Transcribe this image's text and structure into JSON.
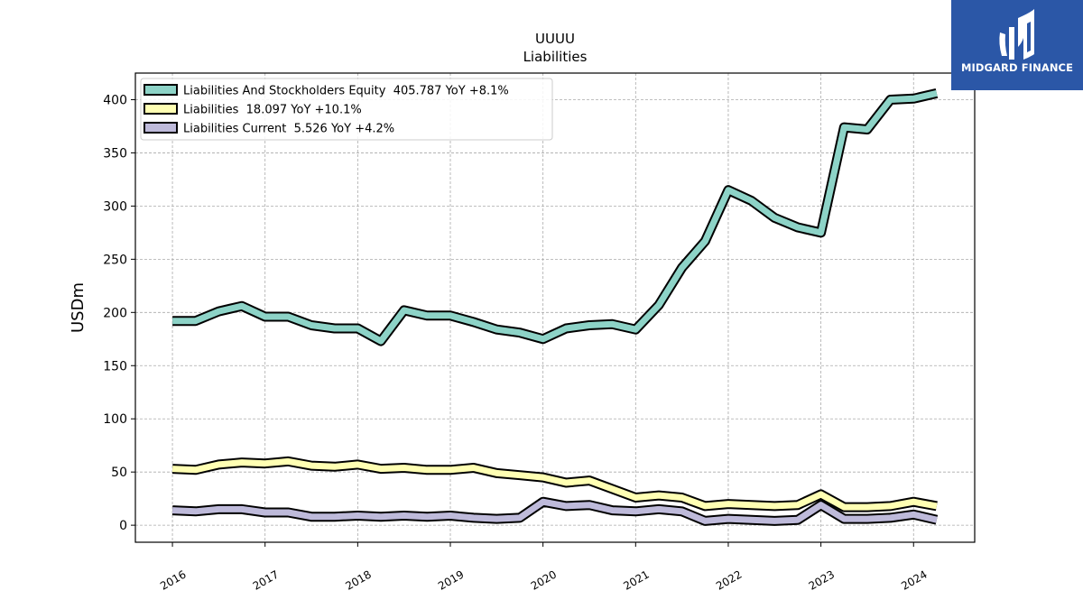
{
  "chart_data": {
    "type": "line",
    "title": "UUUU",
    "subtitle": "Liabilities",
    "ylabel": "USDm",
    "xlabel": "",
    "xlim": [
      2015.6,
      2024.66
    ],
    "ylim": [
      -16,
      425
    ],
    "xticks": [
      2016,
      2017,
      2018,
      2019,
      2020,
      2021,
      2022,
      2023,
      2024
    ],
    "yticks": [
      0,
      50,
      100,
      150,
      200,
      250,
      300,
      350,
      400
    ],
    "grid": true,
    "legend_position": "top-left",
    "x": [
      2016.0,
      2016.25,
      2016.5,
      2016.75,
      2017.0,
      2017.25,
      2017.5,
      2017.75,
      2018.0,
      2018.25,
      2018.5,
      2018.75,
      2019.0,
      2019.25,
      2019.5,
      2019.75,
      2020.0,
      2020.25,
      2020.5,
      2020.75,
      2021.0,
      2021.25,
      2021.5,
      2021.75,
      2022.0,
      2022.25,
      2022.5,
      2022.75,
      2023.0,
      2023.25,
      2023.5,
      2023.75,
      2024.0,
      2024.25
    ],
    "series": [
      {
        "name": "Liabilities And Stockholders Equity  405.787 YoY +8.1%",
        "color": "#8dd3c7",
        "values": [
          192,
          192,
          201,
          206,
          196,
          196,
          188,
          185,
          185,
          173,
          202,
          197,
          197,
          191,
          184,
          181,
          175,
          185,
          188,
          189,
          184,
          207,
          242,
          267,
          315,
          305,
          289,
          280,
          275,
          374,
          372,
          400,
          401,
          406
        ]
      },
      {
        "name": "Liabilities  18.097 YoY +10.1%",
        "color": "#ffffb3",
        "values": [
          53,
          52,
          57,
          59,
          58,
          60,
          56,
          55,
          57,
          53,
          54,
          52,
          52,
          54,
          49,
          47,
          45,
          40,
          42,
          34,
          26,
          28,
          26,
          18,
          20,
          19,
          18,
          19,
          29,
          17,
          17,
          18,
          22,
          18
        ]
      },
      {
        "name": "Liabilities Current  5.526 YoY +4.2%",
        "color": "#bebada",
        "values": [
          14,
          13,
          15,
          15,
          12,
          12,
          8,
          8,
          9,
          8,
          9,
          8,
          9,
          7,
          6,
          7,
          22,
          18,
          19,
          14,
          13,
          15,
          13,
          4,
          6,
          5,
          4,
          5,
          19,
          6,
          6,
          7,
          10,
          5
        ]
      }
    ],
    "xtick_labels": [
      "2016",
      "2017",
      "2018",
      "2019",
      "2020",
      "2021",
      "2022",
      "2023",
      "2024"
    ],
    "ytick_labels": [
      "0",
      "50",
      "100",
      "150",
      "200",
      "250",
      "300",
      "350",
      "400"
    ]
  },
  "logo": {
    "text": "MIDGARD FINANCE",
    "background": "#2b57a7",
    "icon": "midgard-logo-icon"
  }
}
